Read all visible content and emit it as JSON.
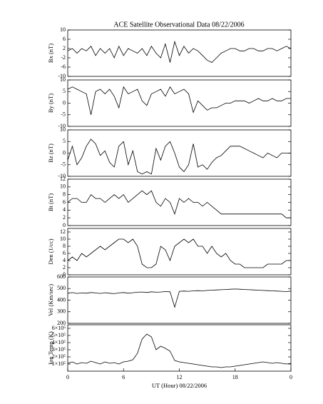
{
  "chart_data": [
    {
      "type": "line",
      "title": "ACE Satellite Observational Data   08/22/2006",
      "ylabel": "Bx (nT)",
      "xlim": [
        0,
        24
      ],
      "ylim": [
        -10,
        10
      ],
      "yticks": [
        -10,
        -6,
        -2,
        2,
        6,
        10
      ],
      "color": "#000000",
      "x": [
        0,
        0.5,
        1,
        1.5,
        2,
        2.5,
        3,
        3.5,
        4,
        4.5,
        5,
        5.5,
        6,
        6.5,
        7,
        7.5,
        8,
        8.5,
        9,
        9.5,
        10,
        10.5,
        11,
        11.5,
        12,
        12.5,
        13,
        13.5,
        14,
        14.5,
        15,
        15.5,
        16,
        16.5,
        17,
        17.5,
        18,
        18.5,
        19,
        19.5,
        20,
        20.5,
        21,
        21.5,
        22,
        22.5,
        23,
        23.5,
        24
      ],
      "values": [
        1,
        2,
        0,
        2,
        1,
        3,
        -1,
        2,
        0,
        2,
        -2,
        3,
        -1,
        2,
        1,
        0,
        2,
        -1,
        3,
        0,
        -2,
        4,
        -4,
        5,
        -1,
        3,
        0,
        2,
        1,
        -1,
        -3,
        -4,
        -2,
        0,
        1,
        2,
        2,
        1,
        1,
        2,
        2,
        1,
        1,
        2,
        2,
        1,
        2,
        3,
        2
      ]
    },
    {
      "type": "line",
      "ylabel": "By (nT)",
      "xlim": [
        0,
        24
      ],
      "ylim": [
        -10,
        10
      ],
      "yticks": [
        -10,
        -5,
        0,
        5,
        10
      ],
      "color": "#000000",
      "x": [
        0,
        0.5,
        1,
        1.5,
        2,
        2.5,
        3,
        3.5,
        4,
        4.5,
        5,
        5.5,
        6,
        6.5,
        7,
        7.5,
        8,
        8.5,
        9,
        9.5,
        10,
        10.5,
        11,
        11.5,
        12,
        12.5,
        13,
        13.5,
        14,
        14.5,
        15,
        15.5,
        16,
        16.5,
        17,
        17.5,
        18,
        18.5,
        19,
        19.5,
        20,
        20.5,
        21,
        21.5,
        22,
        22.5,
        23,
        23.5,
        24
      ],
      "values": [
        6,
        7,
        6,
        5,
        4,
        -5,
        5,
        6,
        4,
        6,
        3,
        -2,
        7,
        4,
        5,
        6,
        1,
        -1,
        4,
        5,
        6,
        3,
        7,
        4,
        5,
        6,
        4,
        -4,
        1,
        -1,
        -3,
        -2,
        -2,
        -1,
        0,
        0,
        1,
        1,
        1,
        0,
        1,
        2,
        1,
        1,
        2,
        1,
        1,
        2,
        2
      ]
    },
    {
      "type": "line",
      "ylabel": "Bz (nT)",
      "xlim": [
        0,
        24
      ],
      "ylim": [
        -10,
        10
      ],
      "yticks": [
        -10,
        -5,
        0,
        5,
        10
      ],
      "color": "#000000",
      "x": [
        0,
        0.5,
        1,
        1.5,
        2,
        2.5,
        3,
        3.5,
        4,
        4.5,
        5,
        5.5,
        6,
        6.5,
        7,
        7.5,
        8,
        8.5,
        9,
        9.5,
        10,
        10.5,
        11,
        11.5,
        12,
        12.5,
        13,
        13.5,
        14,
        14.5,
        15,
        15.5,
        16,
        16.5,
        17,
        17.5,
        18,
        18.5,
        19,
        19.5,
        20,
        20.5,
        21,
        21.5,
        22,
        22.5,
        23,
        23.5,
        24
      ],
      "values": [
        -3,
        3,
        -5,
        -2,
        3,
        6,
        4,
        -1,
        1,
        -4,
        -6,
        3,
        5,
        -5,
        1,
        -8,
        -9,
        -8,
        -9,
        2,
        -3,
        3,
        5,
        0,
        -6,
        -8,
        -5,
        4,
        -6,
        -5,
        -7,
        -4,
        -2,
        -1,
        1,
        3,
        3,
        3,
        2,
        1,
        0,
        -1,
        -2,
        0,
        -1,
        -2,
        0,
        0,
        0
      ]
    },
    {
      "type": "line",
      "ylabel": "Bt (nT)",
      "xlim": [
        0,
        24
      ],
      "ylim": [
        0,
        12
      ],
      "yticks": [
        0,
        2,
        4,
        6,
        8,
        10,
        12
      ],
      "color": "#000000",
      "x": [
        0,
        0.5,
        1,
        1.5,
        2,
        2.5,
        3,
        3.5,
        4,
        4.5,
        5,
        5.5,
        6,
        6.5,
        7,
        7.5,
        8,
        8.5,
        9,
        9.5,
        10,
        10.5,
        11,
        11.5,
        12,
        12.5,
        13,
        13.5,
        14,
        14.5,
        15,
        15.5,
        16,
        16.5,
        17,
        17.5,
        18,
        18.5,
        19,
        19.5,
        20,
        20.5,
        21,
        21.5,
        22,
        22.5,
        23,
        23.5,
        24
      ],
      "values": [
        6,
        7,
        7,
        6,
        6,
        8,
        7,
        7,
        6,
        7,
        8,
        7,
        8,
        6,
        7,
        8,
        9,
        8,
        9,
        6,
        5,
        7,
        6,
        3,
        7,
        6,
        7,
        6,
        6,
        5,
        6,
        5,
        4,
        3,
        3,
        3,
        3,
        3,
        3,
        3,
        3,
        3,
        3,
        3,
        3,
        3,
        3,
        2,
        2
      ]
    },
    {
      "type": "line",
      "ylabel": "Den (1/cc)",
      "xlim": [
        0,
        24
      ],
      "ylim": [
        0,
        13
      ],
      "yticks": [
        0,
        2,
        4,
        6,
        8,
        10,
        12
      ],
      "color": "#000000",
      "x": [
        0,
        0.5,
        1,
        1.5,
        2,
        2.5,
        3,
        3.5,
        4,
        4.5,
        5,
        5.5,
        6,
        6.5,
        7,
        7.5,
        8,
        8.5,
        9,
        9.5,
        10,
        10.5,
        11,
        11.5,
        12,
        12.5,
        13,
        13.5,
        14,
        14.5,
        15,
        15.5,
        16,
        16.5,
        17,
        17.5,
        18,
        18.5,
        19,
        19.5,
        20,
        20.5,
        21,
        21.5,
        22,
        22.5,
        23,
        23.5,
        24
      ],
      "values": [
        4,
        5,
        4,
        6,
        5,
        6,
        7,
        8,
        7,
        8,
        9,
        10,
        10,
        9,
        10,
        8,
        3,
        2,
        2,
        3,
        8,
        7,
        4,
        8,
        9,
        10,
        9,
        10,
        8,
        8,
        6,
        8,
        6,
        5,
        6,
        4,
        3,
        3,
        2,
        2,
        2,
        2,
        2,
        3,
        3,
        3,
        3,
        4,
        4
      ]
    },
    {
      "type": "line",
      "ylabel": "Vel (Km/sec)",
      "xlim": [
        0,
        24
      ],
      "ylim": [
        200,
        600
      ],
      "yticks": [
        200,
        300,
        400,
        500,
        600
      ],
      "color": "#000000",
      "x": [
        0,
        0.5,
        1,
        1.5,
        2,
        2.5,
        3,
        3.5,
        4,
        4.5,
        5,
        5.5,
        6,
        6.5,
        7,
        7.5,
        8,
        8.5,
        9,
        9.5,
        10,
        10.5,
        11,
        11.5,
        12,
        12.5,
        13,
        13.5,
        14,
        14.5,
        15,
        15.5,
        16,
        16.5,
        17,
        17.5,
        18,
        18.5,
        19,
        19.5,
        20,
        20.5,
        21,
        21.5,
        22,
        22.5,
        23,
        23.5,
        24
      ],
      "values": [
        460,
        465,
        458,
        462,
        460,
        466,
        462,
        458,
        464,
        460,
        456,
        462,
        466,
        460,
        464,
        468,
        470,
        466,
        472,
        468,
        470,
        474,
        472,
        340,
        476,
        478,
        476,
        480,
        482,
        480,
        484,
        486,
        488,
        490,
        492,
        494,
        496,
        494,
        492,
        490,
        488,
        486,
        484,
        482,
        480,
        478,
        476,
        474,
        478
      ]
    },
    {
      "type": "line",
      "ylabel": "Ion Temp (K)",
      "xlabel": "UT (Hour)  08/22/2006",
      "xlim": [
        0,
        24
      ],
      "ylim": [
        0,
        650000
      ],
      "yticks": [
        {
          "value": 100000,
          "label": "1×10⁵"
        },
        {
          "value": 200000,
          "label": "2×10⁵"
        },
        {
          "value": 300000,
          "label": "3×10⁵"
        },
        {
          "value": 400000,
          "label": "4×10⁵"
        },
        {
          "value": 500000,
          "label": "5×10⁵"
        },
        {
          "value": 600000,
          "label": "6×10⁵"
        }
      ],
      "xticks": [
        0,
        6,
        12,
        18,
        {
          "value": 24,
          "label": "0"
        }
      ],
      "color": "#000000",
      "x": [
        0,
        0.5,
        1,
        1.5,
        2,
        2.5,
        3,
        3.5,
        4,
        4.5,
        5,
        5.5,
        6,
        6.5,
        7,
        7.5,
        8,
        8.5,
        9,
        9.5,
        10,
        10.5,
        11,
        11.5,
        12,
        12.5,
        13,
        13.5,
        14,
        14.5,
        15,
        15.5,
        16,
        16.5,
        17,
        17.5,
        18,
        18.5,
        19,
        19.5,
        20,
        20.5,
        21,
        21.5,
        22,
        22.5,
        23,
        23.5,
        24
      ],
      "values": [
        110000,
        130000,
        100000,
        120000,
        110000,
        140000,
        120000,
        100000,
        130000,
        110000,
        120000,
        100000,
        130000,
        140000,
        160000,
        250000,
        450000,
        520000,
        480000,
        300000,
        350000,
        320000,
        280000,
        150000,
        130000,
        120000,
        110000,
        100000,
        90000,
        80000,
        70000,
        60000,
        60000,
        50000,
        60000,
        60000,
        70000,
        80000,
        90000,
        100000,
        110000,
        120000,
        130000,
        120000,
        110000,
        120000,
        110000,
        100000,
        110000
      ]
    }
  ]
}
